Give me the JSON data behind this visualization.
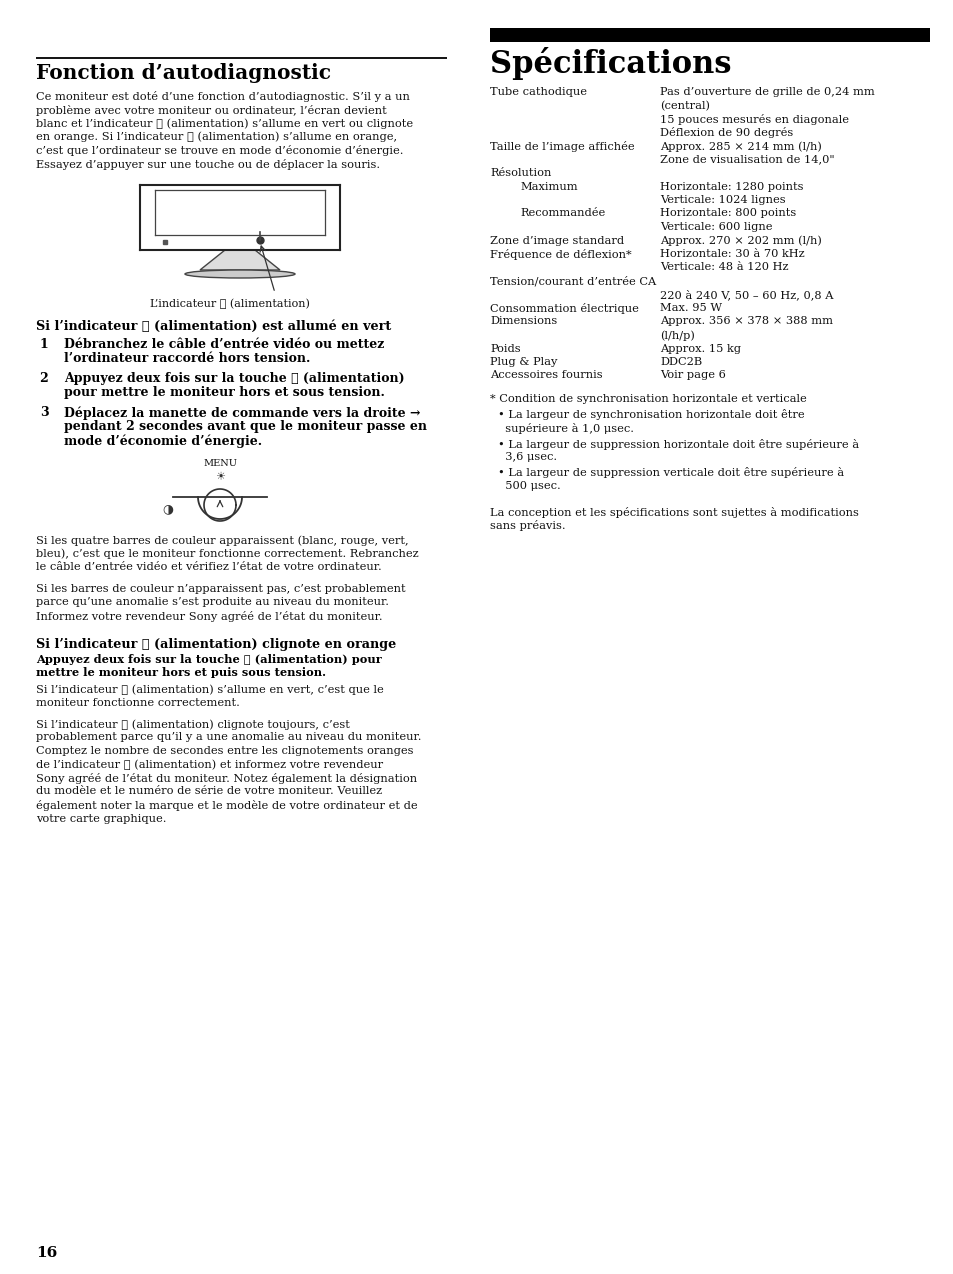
{
  "bg_color": "#ffffff",
  "page_number": "16",
  "left_title": "Fonction d’autodiagnostic",
  "right_title": "Spécifications",
  "intro_lines": [
    "Ce moniteur est doté d’une fonction d’autodiagnostic. S’il y a un",
    "problème avec votre moniteur ou ordinateur, l’écran devient",
    "blanc et l’indicateur ⏻ (alimentation) s’allume en vert ou clignote",
    "en orange. Si l’indicateur ⏻ (alimentation) s’allume en orange,",
    "c’est que l’ordinateur se trouve en mode d’économie d’énergie.",
    "Essayez d’appuyer sur une touche ou de déplacer la souris."
  ],
  "indicator_caption": "L’indicateur ⏻ (alimentation)",
  "section1_title": "Si l’indicateur ⏻ (alimentation) est allumé en vert",
  "step1_lines": [
    "Débranchez le câble d’entrée vidéo ou mettez",
    "l’ordinateur raccordé hors tension."
  ],
  "step2_lines": [
    "Appuyez deux fois sur la touche ⏻ (alimentation)",
    "pour mettre le moniteur hors et sous tension."
  ],
  "step3_lines": [
    "Déplacez la manette de commande vers la droite →",
    "pendant 2 secondes avant que le moniteur passe en",
    "mode d’économie d’énergie."
  ],
  "color_bars1_lines": [
    "Si les quatre barres de couleur apparaissent (blanc, rouge, vert,",
    "bleu), c’est que le moniteur fonctionne correctement. Rebranchez",
    "le câble d’entrée vidéo et vérifiez l’état de votre ordinateur."
  ],
  "color_bars2_lines": [
    "Si les barres de couleur n’apparaissent pas, c’est probablement",
    "parce qu’une anomalie s’est produite au niveau du moniteur.",
    "Informez votre revendeur Sony agréé de l’état du moniteur."
  ],
  "section2_title": "Si l’indicateur ⏻ (alimentation) clignote en orange",
  "section2_bold_lines": [
    "Appuyez deux fois sur la touche ⏻ (alimentation) pour",
    "mettre le moniteur hors et puis sous tension."
  ],
  "section2_text1_lines": [
    "Si l’indicateur ⏻ (alimentation) s’allume en vert, c’est que le",
    "moniteur fonctionne correctement."
  ],
  "section2_text2_lines": [
    "Si l’indicateur ⏻ (alimentation) clignote toujours, c’est",
    "probablement parce qu’il y a une anomalie au niveau du moniteur.",
    "Comptez le nombre de secondes entre les clignotements oranges",
    "de l’indicateur ⏻ (alimentation) et informez votre revendeur",
    "Sony agréé de l’état du moniteur. Notez également la désignation",
    "du modèle et le numéro de série de votre moniteur. Veuillez",
    "également noter la marque et le modèle de votre ordinateur et de",
    "votre carte graphique."
  ],
  "spec_rows": [
    {
      "label": "Tube cathodique",
      "col2": [
        "Pas d’ouverture de grille de 0,24 mm",
        "(central)",
        "15 pouces mesurés en diagonale",
        "Déflexion de 90 degrés"
      ],
      "indent": 0
    },
    {
      "label": "Taille de l’image affichée",
      "col2": [
        "Approx. 285 × 214 mm (l/h)",
        "Zone de visualisation de 14,0\""
      ],
      "indent": 0
    },
    {
      "label": "Résolution",
      "col2": [],
      "indent": 0
    },
    {
      "label": "Maximum",
      "col2": [
        "Horizontale: 1280 points",
        "Verticale: 1024 lignes"
      ],
      "indent": 30
    },
    {
      "label": "Recommandée",
      "col2": [
        "Horizontale: 800 points",
        "Verticale: 600 ligne"
      ],
      "indent": 30
    },
    {
      "label": "Zone d’image standard",
      "col2": [
        "Approx. 270 × 202 mm (l/h)"
      ],
      "indent": 0
    },
    {
      "label": "Fréquence de déflexion*",
      "col2": [
        "Horizontale: 30 à 70 kHz",
        "Verticale: 48 à 120 Hz"
      ],
      "indent": 0
    },
    {
      "label": "Tension/courant d’entrée CA",
      "col2": [
        "220 à 240 V, 50 – 60 Hz, 0,8 A"
      ],
      "indent": 0,
      "label_only": true
    },
    {
      "label": "Consommation électrique",
      "col2": [
        "Max. 95 W"
      ],
      "indent": 0
    },
    {
      "label": "Dimensions",
      "col2": [
        "Approx. 356 × 378 × 388 mm",
        "(l/h/p)"
      ],
      "indent": 0
    },
    {
      "label": "Poids",
      "col2": [
        "Approx. 15 kg"
      ],
      "indent": 0
    },
    {
      "label": "Plug & Play",
      "col2": [
        "DDC2B"
      ],
      "indent": 0
    },
    {
      "label": "Accessoires fournis",
      "col2": [
        "Voir page 6"
      ],
      "indent": 0
    }
  ],
  "spec_note": "* Condition de synchronisation horizontale et verticale",
  "spec_bullets": [
    [
      "• La largeur de synchronisation horizontale doit être",
      "  supérieure à 1,0 μsec."
    ],
    [
      "• La largeur de suppression horizontale doit être supérieure à",
      "  3,6 μsec."
    ],
    [
      "• La largeur de suppression verticale doit être supérieure à",
      "  500 μsec."
    ]
  ],
  "spec_footer_lines": [
    "La conception et les spécifications sont sujettes à modifications",
    "sans préavis."
  ]
}
